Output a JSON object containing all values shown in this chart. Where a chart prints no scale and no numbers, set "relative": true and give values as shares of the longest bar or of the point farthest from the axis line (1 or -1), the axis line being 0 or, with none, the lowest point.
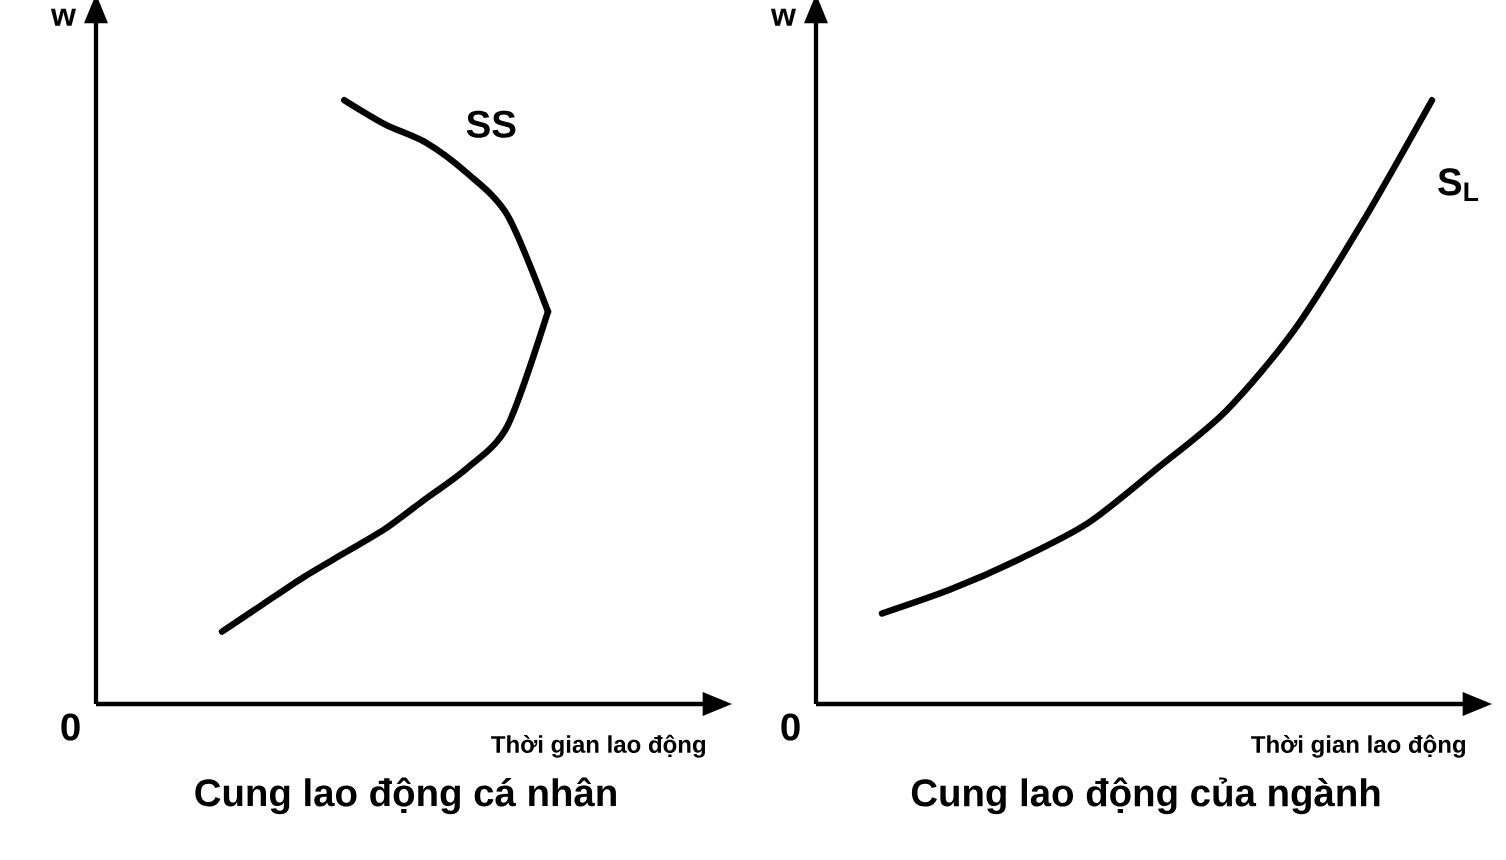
{
  "chart_data": [
    {
      "type": "line",
      "relative": true,
      "title": "Cung lao động cá nhân",
      "xlabel": "Thời gian lao động",
      "ylabel": "w",
      "annotations": [
        "0"
      ],
      "categories": [
        null,
        null,
        null,
        null,
        null,
        null,
        null,
        null,
        null
      ],
      "series": [
        {
          "color": "#000000",
          "values": [
            0.12,
            0.165,
            0.21,
            0.25,
            0.29,
            0.34,
            0.39,
            0.46,
            0.65
          ]
        },
        {
          "name": "SS",
          "color": "#000000",
          "values": [
            null,
            null,
            null,
            1.0,
            0.96,
            0.93,
            0.88,
            0.81,
            0.65
          ]
        }
      ]
    },
    {
      "type": "line",
      "relative": true,
      "title": "Cung lao động của ngành",
      "xlabel": "Thời gian lao động",
      "ylabel": "w",
      "annotations": [
        "0"
      ],
      "categories": [
        null,
        null,
        null,
        null,
        null,
        null,
        null,
        null,
        null
      ],
      "series": [
        {
          "name": "S$_{L}$",
          "color": "#000000",
          "values": [
            0.15,
            0.19,
            0.24,
            0.3,
            0.39,
            0.485,
            0.62,
            0.8,
            1.0
          ]
        }
      ]
    }
  ]
}
